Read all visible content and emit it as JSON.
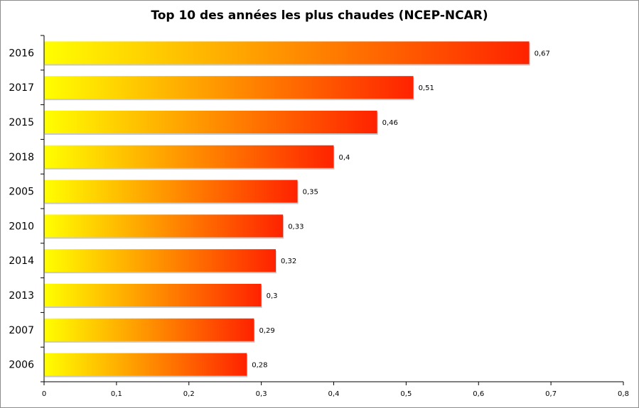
{
  "chart_data": {
    "type": "bar",
    "orientation": "horizontal",
    "title": "Top 10 des années les plus chaudes (NCEP-NCAR)",
    "categories": [
      "2016",
      "2017",
      "2015",
      "2018",
      "2005",
      "2010",
      "2014",
      "2013",
      "2007",
      "2006"
    ],
    "values": [
      0.67,
      0.51,
      0.46,
      0.4,
      0.35,
      0.33,
      0.32,
      0.3,
      0.29,
      0.28
    ],
    "value_labels": [
      "0,67",
      "0,51",
      "0,46",
      "0,4",
      "0,35",
      "0,33",
      "0,32",
      "0,3",
      "0,29",
      "0,28"
    ],
    "xlim": [
      0,
      0.8
    ],
    "xticks": [
      0,
      0.1,
      0.2,
      0.3,
      0.4,
      0.5,
      0.6,
      0.7,
      0.8
    ],
    "xtick_labels": [
      "0",
      "0,1",
      "0,2",
      "0,3",
      "0,4",
      "0,5",
      "0,6",
      "0,7",
      "0,8"
    ],
    "grid": false,
    "legend": "none",
    "bar_gradient": [
      "#ffff00",
      "#ff2200"
    ]
  }
}
